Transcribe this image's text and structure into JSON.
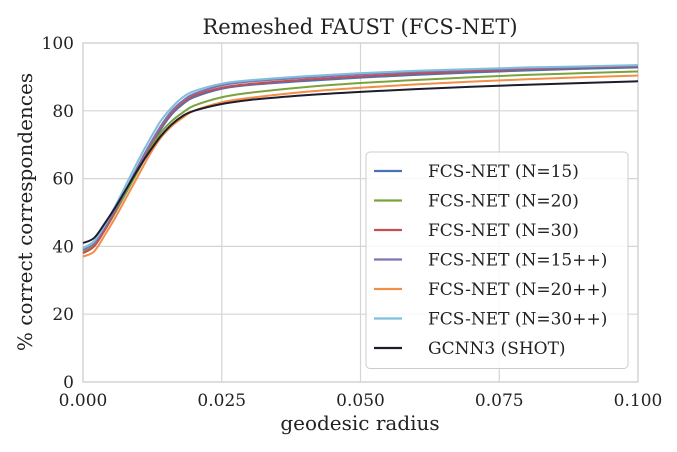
{
  "chart_data": {
    "type": "line",
    "title": "Remeshed FAUST (FCS-NET)",
    "xlabel": "geodesic radius",
    "ylabel": "% correct correspondences",
    "xlim": [
      0,
      0.1
    ],
    "ylim": [
      0,
      100
    ],
    "x_ticks": [
      0,
      0.025,
      0.05,
      0.075,
      0.1
    ],
    "x_tick_labels": [
      "0.000",
      "0.025",
      "0.050",
      "0.075",
      "0.100"
    ],
    "y_ticks": [
      0,
      20,
      40,
      60,
      80,
      100
    ],
    "y_tick_labels": [
      "0",
      "20",
      "40",
      "60",
      "80",
      "100"
    ],
    "grid": true,
    "legend_position": "lower-right",
    "x": [
      0,
      0.002,
      0.004,
      0.006,
      0.008,
      0.01,
      0.012,
      0.014,
      0.016,
      0.018,
      0.02,
      0.025,
      0.03,
      0.04,
      0.05,
      0.06,
      0.07,
      0.08,
      0.09,
      0.1
    ],
    "series": [
      {
        "name": "FCS-NET (N=15)",
        "color": "#4c72b0",
        "values": [
          39.5,
          41.5,
          46,
          51,
          57,
          63,
          69,
          74.5,
          79,
          82,
          84,
          86.5,
          87.6,
          88.8,
          89.8,
          90.6,
          91.3,
          91.9,
          92.4,
          92.8
        ]
      },
      {
        "name": "FCS-NET (N=20)",
        "color": "#7aa33d",
        "values": [
          38.5,
          40.5,
          45,
          50.5,
          56.5,
          62.5,
          68.5,
          73.5,
          77,
          79.5,
          81.5,
          84,
          85.3,
          87,
          88.2,
          89.1,
          89.9,
          90.6,
          91.1,
          91.6
        ]
      },
      {
        "name": "FCS-NET (N=30)",
        "color": "#c44e52",
        "values": [
          38,
          40,
          45,
          51,
          57.5,
          63.5,
          69.5,
          75,
          79.5,
          82.5,
          84.5,
          86.8,
          87.9,
          89.2,
          90.2,
          91,
          91.7,
          92.3,
          92.8,
          93.2
        ]
      },
      {
        "name": "FCS-NET (N=15++)",
        "color": "#8172b2",
        "values": [
          39,
          41,
          46,
          51.5,
          57.5,
          64,
          70,
          75.5,
          80,
          83,
          85,
          87.5,
          88.6,
          89.8,
          90.8,
          91.5,
          92.1,
          92.6,
          93,
          93.4
        ]
      },
      {
        "name": "FCS-NET (N=20++)",
        "color": "#f28e48",
        "values": [
          37,
          38.5,
          43.5,
          49,
          55,
          61,
          67,
          72,
          75.5,
          78,
          80,
          82.5,
          83.8,
          85.6,
          86.8,
          87.8,
          88.6,
          89.3,
          89.9,
          90.4
        ]
      },
      {
        "name": "FCS-NET (N=30++)",
        "color": "#7ebfdc",
        "values": [
          39.5,
          41.5,
          46.5,
          52.5,
          59,
          65.5,
          71.5,
          77,
          81,
          84,
          85.8,
          88,
          89,
          90.2,
          91.1,
          91.8,
          92.3,
          92.8,
          93.1,
          93.5
        ]
      },
      {
        "name": "GCNN3 (SHOT)",
        "color": "#1c1c2c",
        "values": [
          41,
          42.5,
          47,
          52,
          57.5,
          63,
          68,
          72.5,
          76,
          78.5,
          80,
          82,
          83.2,
          84.6,
          85.6,
          86.4,
          87.1,
          87.7,
          88.2,
          88.7
        ]
      }
    ]
  }
}
